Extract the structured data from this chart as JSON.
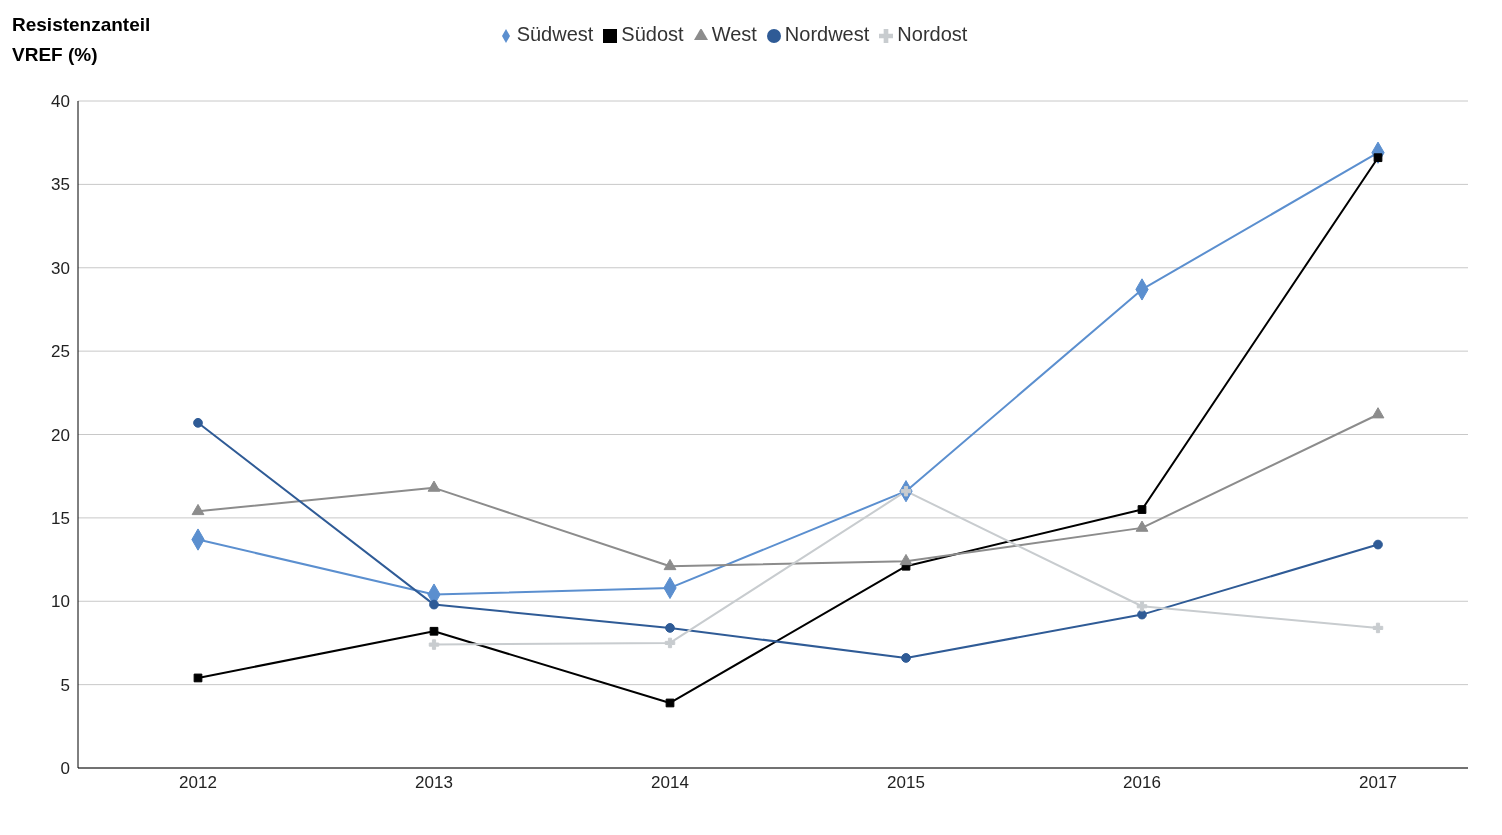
{
  "chart_data": {
    "type": "line",
    "ylabel": "Resistenzanteil VREF (%)",
    "categories": [
      "2012",
      "2013",
      "2014",
      "2015",
      "2016",
      "2017"
    ],
    "series": [
      {
        "name": "Südwest",
        "color": "#5b8fcf",
        "marker": "diamond",
        "values": [
          13.7,
          10.4,
          10.8,
          16.6,
          28.7,
          36.9
        ]
      },
      {
        "name": "Südost",
        "color": "#000000",
        "marker": "square",
        "values": [
          5.4,
          8.2,
          3.9,
          12.1,
          15.5,
          36.6
        ]
      },
      {
        "name": "West",
        "color": "#8c8c8c",
        "marker": "triangle",
        "values": [
          15.4,
          16.8,
          12.1,
          12.4,
          14.4,
          21.2
        ]
      },
      {
        "name": "Nordwest",
        "color": "#2f5b96",
        "marker": "circle",
        "values": [
          20.7,
          9.8,
          8.4,
          6.6,
          9.2,
          13.4
        ]
      },
      {
        "name": "Nordost",
        "color": "#c8cccf",
        "marker": "cross",
        "values": [
          null,
          7.4,
          7.5,
          16.6,
          9.7,
          8.4
        ]
      }
    ],
    "ylim": [
      0,
      40
    ],
    "yticks": [
      0,
      5,
      10,
      15,
      20,
      25,
      30,
      35,
      40
    ],
    "grid": "y",
    "legend": "top",
    "line_style": "solid"
  }
}
